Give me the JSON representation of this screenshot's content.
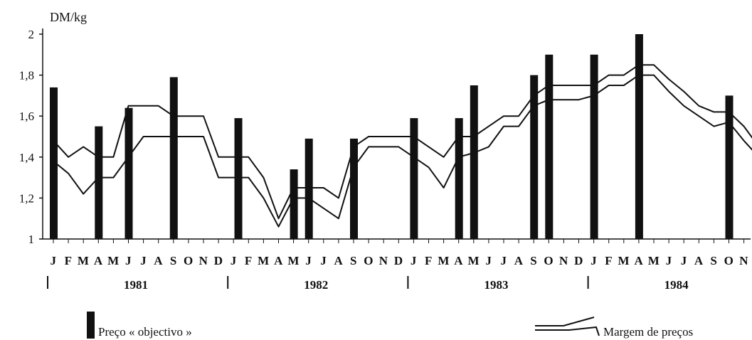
{
  "chart_data": {
    "type": "bar+line",
    "ylabel": "DM/kg",
    "ylim": [
      1,
      2
    ],
    "yticks": [
      "1",
      "1,2",
      "1,4",
      "1,6",
      "1,8",
      "2"
    ],
    "months": [
      "J",
      "F",
      "M",
      "A",
      "M",
      "J",
      "J",
      "A",
      "S",
      "O",
      "N",
      "D"
    ],
    "years": [
      "1981",
      "1982",
      "1983",
      "1984"
    ],
    "legend": {
      "bar": "Preço « objectivo »",
      "band": "Margem de preços"
    },
    "target_price": [
      {
        "t": 0.0,
        "value": 1.74
      },
      {
        "t": 3.0,
        "value": 1.55
      },
      {
        "t": 5.0,
        "value": 1.64
      },
      {
        "t": 8.0,
        "value": 1.79
      },
      {
        "t": 12.3,
        "value": 1.59
      },
      {
        "t": 16.0,
        "value": 1.34
      },
      {
        "t": 17.0,
        "value": 1.49
      },
      {
        "t": 20.0,
        "value": 1.49
      },
      {
        "t": 24.0,
        "value": 1.59
      },
      {
        "t": 27.0,
        "value": 1.59
      },
      {
        "t": 28.0,
        "value": 1.75
      },
      {
        "t": 32.0,
        "value": 1.8
      },
      {
        "t": 33.0,
        "value": 1.9
      },
      {
        "t": 36.0,
        "value": 1.9
      },
      {
        "t": 39.0,
        "value": 2.0
      },
      {
        "t": 45.0,
        "value": 1.7
      }
    ],
    "band_upper": [
      [
        0,
        1.48
      ],
      [
        1,
        1.4
      ],
      [
        2,
        1.45
      ],
      [
        3,
        1.4
      ],
      [
        4,
        1.4
      ],
      [
        5,
        1.65
      ],
      [
        6,
        1.65
      ],
      [
        7,
        1.65
      ],
      [
        8,
        1.6
      ],
      [
        9,
        1.6
      ],
      [
        10,
        1.6
      ],
      [
        11,
        1.4
      ],
      [
        12,
        1.4
      ],
      [
        13,
        1.4
      ],
      [
        14,
        1.3
      ],
      [
        15,
        1.1
      ],
      [
        16,
        1.25
      ],
      [
        17,
        1.25
      ],
      [
        18,
        1.25
      ],
      [
        19,
        1.2
      ],
      [
        20,
        1.45
      ],
      [
        21,
        1.5
      ],
      [
        22,
        1.5
      ],
      [
        23,
        1.5
      ],
      [
        24,
        1.5
      ],
      [
        25,
        1.45
      ],
      [
        26,
        1.4
      ],
      [
        27,
        1.5
      ],
      [
        28,
        1.5
      ],
      [
        29,
        1.55
      ],
      [
        30,
        1.6
      ],
      [
        31,
        1.6
      ],
      [
        32,
        1.7
      ],
      [
        33,
        1.75
      ],
      [
        34,
        1.75
      ],
      [
        35,
        1.75
      ],
      [
        36,
        1.75
      ],
      [
        37,
        1.8
      ],
      [
        38,
        1.8
      ],
      [
        39,
        1.85
      ],
      [
        40,
        1.85
      ],
      [
        41,
        1.78
      ],
      [
        42,
        1.72
      ],
      [
        43,
        1.65
      ],
      [
        44,
        1.62
      ],
      [
        45,
        1.62
      ],
      [
        46,
        1.55
      ],
      [
        47,
        1.45
      ]
    ],
    "band_lower": [
      [
        0,
        1.38
      ],
      [
        1,
        1.32
      ],
      [
        2,
        1.22
      ],
      [
        3,
        1.3
      ],
      [
        4,
        1.3
      ],
      [
        5,
        1.4
      ],
      [
        6,
        1.5
      ],
      [
        7,
        1.5
      ],
      [
        8,
        1.5
      ],
      [
        9,
        1.5
      ],
      [
        10,
        1.5
      ],
      [
        11,
        1.3
      ],
      [
        12,
        1.3
      ],
      [
        13,
        1.3
      ],
      [
        14,
        1.2
      ],
      [
        15,
        1.06
      ],
      [
        16,
        1.2
      ],
      [
        17,
        1.2
      ],
      [
        18,
        1.15
      ],
      [
        19,
        1.1
      ],
      [
        20,
        1.35
      ],
      [
        21,
        1.45
      ],
      [
        22,
        1.45
      ],
      [
        23,
        1.45
      ],
      [
        24,
        1.4
      ],
      [
        25,
        1.35
      ],
      [
        26,
        1.25
      ],
      [
        27,
        1.4
      ],
      [
        28,
        1.42
      ],
      [
        29,
        1.45
      ],
      [
        30,
        1.55
      ],
      [
        31,
        1.55
      ],
      [
        32,
        1.65
      ],
      [
        33,
        1.68
      ],
      [
        34,
        1.68
      ],
      [
        35,
        1.68
      ],
      [
        36,
        1.7
      ],
      [
        37,
        1.75
      ],
      [
        38,
        1.75
      ],
      [
        39,
        1.8
      ],
      [
        40,
        1.8
      ],
      [
        41,
        1.72
      ],
      [
        42,
        1.65
      ],
      [
        43,
        1.6
      ],
      [
        44,
        1.55
      ],
      [
        45,
        1.57
      ],
      [
        46,
        1.48
      ],
      [
        47,
        1.4
      ]
    ]
  }
}
